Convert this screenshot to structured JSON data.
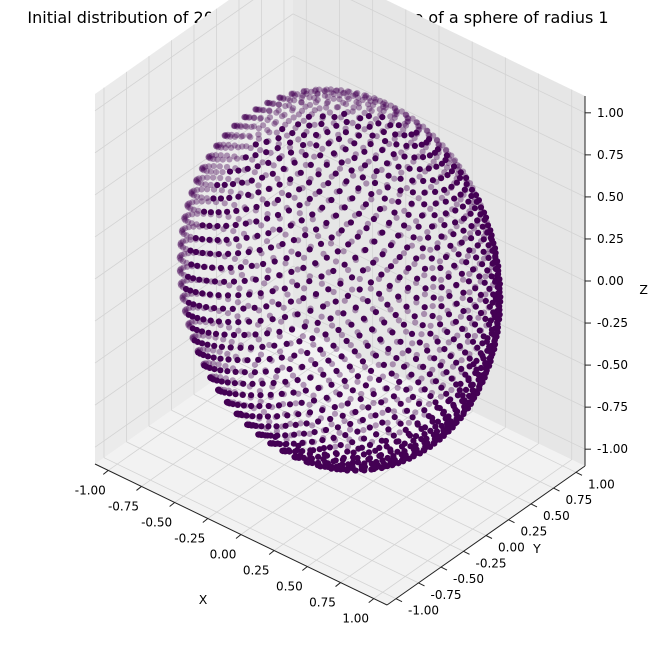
{
  "chart_data": {
    "type": "scatter",
    "projection": "3d",
    "title": "Initial distribution of 2000 particles in the surface of a sphere of radius 1",
    "xlabel": "X",
    "ylabel": "Y",
    "zlabel": "Z",
    "xlim": [
      -1.1,
      1.1
    ],
    "ylim": [
      -1.1,
      1.1
    ],
    "zlim": [
      -1.1,
      1.1
    ],
    "x_ticks": [
      "-1.00",
      "-0.75",
      "-0.50",
      "-0.25",
      "0.00",
      "0.25",
      "0.50",
      "0.75",
      "1.00"
    ],
    "y_ticks": [
      "-1.00",
      "-0.75",
      "-0.50",
      "-0.25",
      "0.00",
      "0.25",
      "0.50",
      "0.75",
      "1.00"
    ],
    "z_ticks": [
      "-1.00",
      "-0.75",
      "-0.50",
      "-0.25",
      "0.00",
      "0.25",
      "0.50",
      "0.75",
      "1.00"
    ],
    "grid": true,
    "series": [
      {
        "shape": "sphere",
        "radius": 1,
        "count": 2000,
        "marker_color": "#440154"
      }
    ],
    "pane_color": "#f2f2f2",
    "grid_color": "#d3d3d3"
  }
}
